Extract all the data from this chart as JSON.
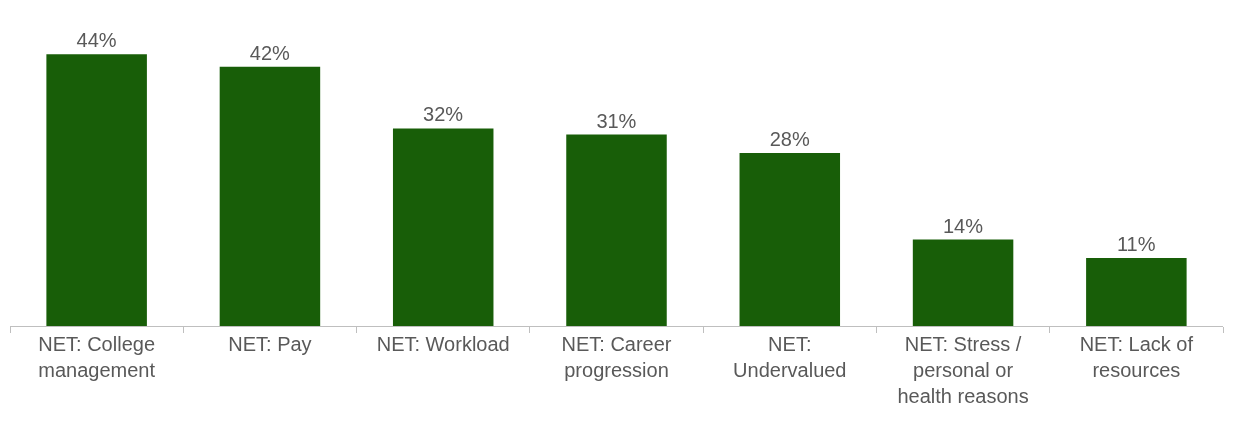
{
  "chart_data": {
    "type": "bar",
    "categories": [
      "NET: College management",
      "NET: Pay",
      "NET: Workload",
      "NET: Career progression",
      "NET: Undervalued",
      "NET: Stress / personal or health reasons",
      "NET: Lack of resources"
    ],
    "values": [
      44,
      42,
      32,
      31,
      28,
      14,
      11
    ],
    "value_labels": [
      "44%",
      "42%",
      "32%",
      "31%",
      "28%",
      "14%",
      "11%"
    ],
    "color": "#185e08"
  }
}
